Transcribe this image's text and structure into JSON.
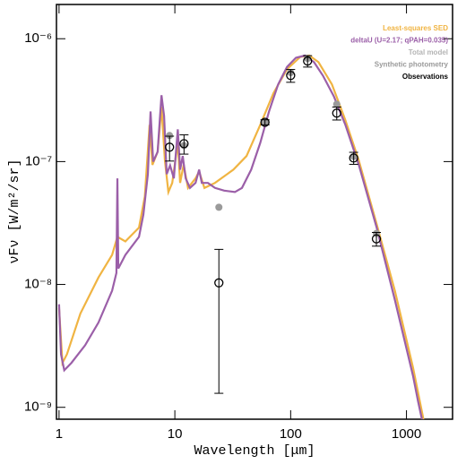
{
  "chart_data": {
    "type": "line",
    "xlabel": "Wavelength [μm]",
    "ylabel": "νFν [W/m²/sr]",
    "xscale": "log",
    "yscale": "log",
    "xlim": [
      0.95,
      2500
    ],
    "ylim": [
      8e-10,
      1.9e-06
    ],
    "xticks": [
      1,
      10,
      100,
      1000
    ],
    "yticks": [
      {
        "value": 1e-09,
        "label": "10⁻⁹"
      },
      {
        "value": 1e-08,
        "label": "10⁻⁸"
      },
      {
        "value": 1e-07,
        "label": "10⁻⁷"
      },
      {
        "value": 1e-06,
        "label": "10⁻⁶"
      }
    ],
    "legend": "top right",
    "series": [
      {
        "name": "Least-squares SED",
        "color": "#f0b442",
        "mode": "line",
        "x": [
          1,
          1.07,
          1.17,
          1.53,
          2.19,
          2.87,
          3.19,
          3.74,
          4.9,
          5.5,
          6.05,
          6.4,
          7.1,
          7.67,
          8.2,
          8.8,
          9.5,
          10.6,
          11.1,
          11.9,
          13.0,
          15.1,
          16.2,
          18,
          22.2,
          32,
          41.6,
          54.6,
          71,
          93,
          121,
          145,
          174,
          227,
          297,
          388,
          553,
          794,
          1140,
          1400
        ],
        "values": [
          6.4e-09,
          2.3e-09,
          2.7e-09,
          5.8e-09,
          1.14e-08,
          1.74e-08,
          2.44e-08,
          2.24e-08,
          2.9e-08,
          5.2e-08,
          1.99e-07,
          9.4e-08,
          1.2e-07,
          2.8e-07,
          1.02e-07,
          5.65e-08,
          6.7e-08,
          1.42e-07,
          6.7e-08,
          9.4e-08,
          6.1e-08,
          7.3e-08,
          8.3e-08,
          6.1e-08,
          6.7e-08,
          8.6e-08,
          1.11e-07,
          1.99e-07,
          3.6e-07,
          5.65e-07,
          7.1e-07,
          7.3e-07,
          6.45e-07,
          4.25e-07,
          2.17e-07,
          1.02e-07,
          3.1e-08,
          8.9e-09,
          2.1e-09,
          8e-10
        ]
      },
      {
        "name": "deltaU (U=2.17; qPAH=0.035)",
        "color": "#9b5fa8",
        "mode": "line",
        "x": [
          1,
          1.04,
          1.11,
          1.28,
          1.68,
          2.19,
          2.87,
          3.13,
          3.19,
          3.25,
          3.74,
          4.9,
          5.35,
          5.85,
          6.17,
          6.5,
          7.1,
          7.67,
          8.07,
          8.5,
          9.1,
          9.8,
          10.6,
          11.1,
          11.7,
          12.4,
          13.5,
          15.1,
          16.2,
          17.1,
          19.3,
          22.2,
          26.7,
          33,
          38,
          45.6,
          54.6,
          65,
          78,
          93,
          111,
          133,
          159,
          190,
          236,
          297,
          388,
          553,
          794,
          1140,
          1260,
          1360
        ],
        "values": [
          6.9e-09,
          2.7e-09,
          2e-09,
          2.3e-09,
          3.2e-09,
          4.9e-09,
          8.9e-09,
          1.24e-08,
          7.3e-08,
          1.35e-08,
          1.74e-08,
          2.44e-08,
          3.7e-08,
          7.9e-08,
          2.56e-07,
          1e-07,
          1.2e-07,
          3.47e-07,
          2.35e-07,
          7.9e-08,
          9.3e-08,
          7.3e-08,
          1.83e-07,
          8.6e-08,
          1.11e-07,
          7.3e-08,
          6.1e-08,
          6.7e-08,
          8.6e-08,
          6.7e-08,
          6.7e-08,
          6.1e-08,
          5.8e-08,
          5.65e-08,
          6.1e-08,
          8.6e-08,
          1.42e-07,
          2.56e-07,
          4.25e-07,
          5.9e-07,
          7e-07,
          7.3e-07,
          6.45e-07,
          5e-07,
          3.4e-07,
          1.99e-07,
          9.4e-08,
          2.9e-08,
          7.5e-09,
          1.8e-09,
          1.12e-09,
          8e-10
        ]
      },
      {
        "name": "Total model",
        "color": "#b4b4b4",
        "mode": "line"
      },
      {
        "name": "Synthetic photometry",
        "color": "#9a9a9a",
        "mode": "points",
        "x": [
          9,
          12,
          24,
          60,
          100,
          140,
          250,
          350,
          550
        ],
        "values": [
          1.63e-07,
          1.35e-07,
          4.25e-08,
          2.1e-07,
          5.3e-07,
          6.9e-07,
          2.93e-07,
          1.1e-07,
          2.6e-08
        ]
      },
      {
        "name": "Observations",
        "color": "#000000",
        "mode": "errorbar",
        "x": [
          9,
          12,
          24,
          60,
          100,
          140,
          250,
          350,
          550
        ],
        "values": [
          1.31e-07,
          1.4e-07,
          1.03e-08,
          2.09e-07,
          5.02e-07,
          6.58e-07,
          2.48e-07,
          1.07e-07,
          2.35e-08
        ],
        "errors": [
          3e-08,
          2.5e-08,
          9e-09,
          1e-08,
          6e-08,
          7e-08,
          3e-08,
          1.2e-08,
          3e-09
        ]
      }
    ]
  }
}
